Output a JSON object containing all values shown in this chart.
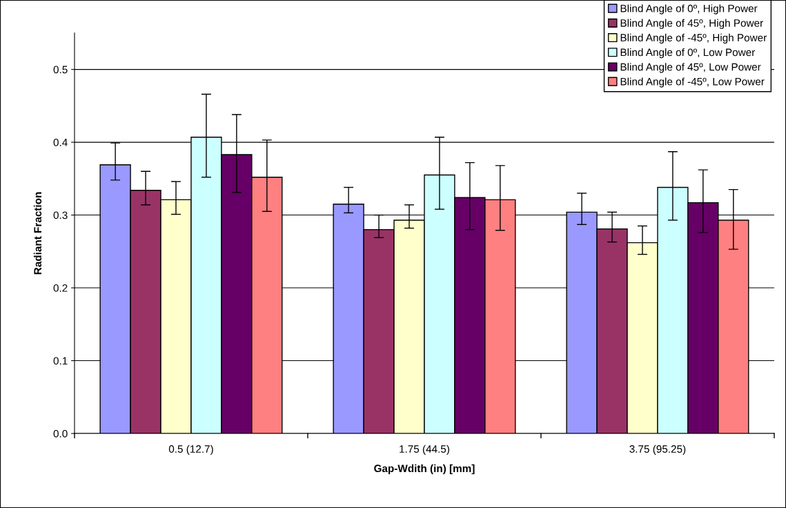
{
  "chart_data": {
    "type": "bar",
    "xlabel": "Gap-Wdith (in) [mm]",
    "ylabel": "Radiant Fraction",
    "categories": [
      "0.5 (12.7)",
      "1.75 (44.5)",
      "3.75 (95.25)"
    ],
    "series": [
      {
        "name": "Blind Angle of 0º, High Power",
        "color": "#9999ff",
        "values": [
          0.369,
          0.315,
          0.304
        ],
        "errors": [
          [
            0.348,
            0.399
          ],
          [
            0.303,
            0.338
          ],
          [
            0.287,
            0.33
          ]
        ]
      },
      {
        "name": "Blind Angle of 45º, High Power",
        "color": "#993366",
        "values": [
          0.334,
          0.28,
          0.281
        ],
        "errors": [
          [
            0.314,
            0.36
          ],
          [
            0.269,
            0.3
          ],
          [
            0.263,
            0.304
          ]
        ]
      },
      {
        "name": "Blind Angle of -45º, High Power",
        "color": "#ffffcc",
        "values": [
          0.321,
          0.293,
          0.262
        ],
        "errors": [
          [
            0.301,
            0.346
          ],
          [
            0.282,
            0.314
          ],
          [
            0.246,
            0.285
          ]
        ]
      },
      {
        "name": "Blind Angle of 0º, Low Power",
        "color": "#ccffff",
        "values": [
          0.407,
          0.355,
          0.338
        ],
        "errors": [
          [
            0.352,
            0.466
          ],
          [
            0.308,
            0.407
          ],
          [
            0.293,
            0.387
          ]
        ]
      },
      {
        "name": "Blind Angle of 45º, Low Power",
        "color": "#660066",
        "values": [
          0.383,
          0.324,
          0.317
        ],
        "errors": [
          [
            0.331,
            0.438
          ],
          [
            0.28,
            0.372
          ],
          [
            0.276,
            0.362
          ]
        ]
      },
      {
        "name": "Blind Angle of -45º, Low Power",
        "color": "#ff8080",
        "values": [
          0.352,
          0.321,
          0.293
        ],
        "errors": [
          [
            0.305,
            0.403
          ],
          [
            0.279,
            0.368
          ],
          [
            0.253,
            0.335
          ]
        ]
      }
    ],
    "ylim": [
      0,
      0.55
    ],
    "yticks": [
      {
        "value": 0,
        "label": "0.0"
      },
      0.1,
      0.2,
      0.3,
      0.4,
      0.5
    ],
    "grid": "y",
    "legend": "top right"
  }
}
